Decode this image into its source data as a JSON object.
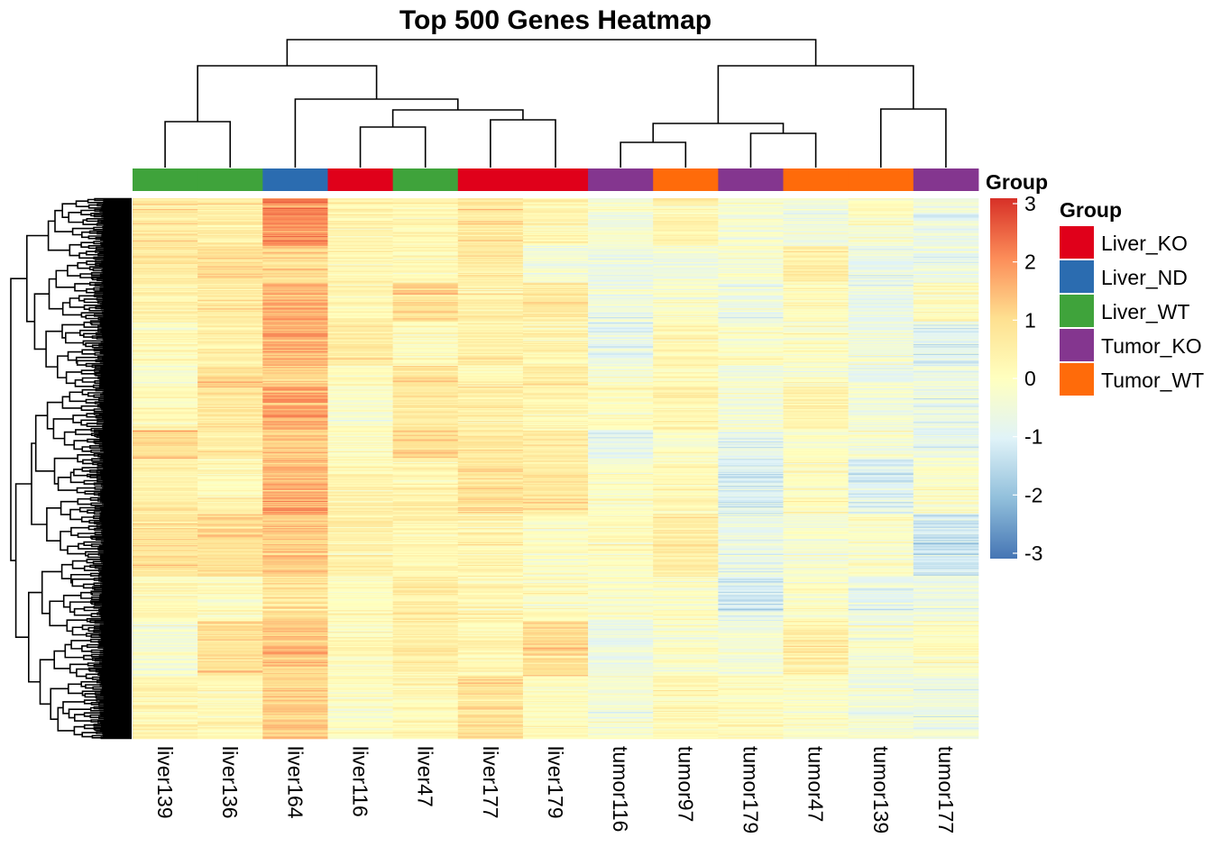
{
  "chart_data": {
    "type": "heatmap",
    "title": "Top 500 Genes Heatmap",
    "columns": [
      "liver139",
      "liver136",
      "liver164",
      "liver116",
      "liver47",
      "liver177",
      "liver179",
      "tumor116",
      "tumor97",
      "tumor179",
      "tumor47",
      "tumor139",
      "tumor177"
    ],
    "column_groups": [
      "Liver_WT",
      "Liver_WT",
      "Liver_ND",
      "Liver_KO",
      "Liver_WT",
      "Liver_KO",
      "Liver_KO",
      "Tumor_KO",
      "Tumor_WT",
      "Tumor_KO",
      "Tumor_WT",
      "Tumor_WT",
      "Tumor_KO"
    ],
    "annotation_label": "Group",
    "group_legend": {
      "title": "Group",
      "items": [
        {
          "label": "Liver_KO",
          "color": "#e0001a"
        },
        {
          "label": "Liver_ND",
          "color": "#2b6cb0"
        },
        {
          "label": "Liver_WT",
          "color": "#3fa33b"
        },
        {
          "label": "Tumor_KO",
          "color": "#84368f"
        },
        {
          "label": "Tumor_WT",
          "color": "#ff6b0a"
        }
      ]
    },
    "color_scale": {
      "ticks": [
        "3",
        "2",
        "1",
        "0",
        "-1",
        "-2",
        "-3"
      ],
      "range": [
        -3,
        3
      ],
      "colors": [
        "#4575b4",
        "#91bfdb",
        "#e0f3f8",
        "#ffffbf",
        "#fee090",
        "#fc8d59",
        "#d73027"
      ]
    },
    "rows": 500,
    "column_profile_mean": [
      0.35,
      0.55,
      1.4,
      0.1,
      0.5,
      0.5,
      0.35,
      -0.25,
      -0.1,
      -0.5,
      0.05,
      -0.35,
      -0.6
    ],
    "column_dendrogram": {
      "merges": [
        [
          1,
          2,
          "x"
        ],
        [
          6,
          7,
          "x"
        ],
        [
          5,
          0,
          "y"
        ],
        [
          4,
          8,
          "y"
        ],
        [
          3,
          10,
          "y"
        ],
        [
          9,
          11,
          "y"
        ],
        [
          2,
          -12,
          "x"
        ],
        [
          -1,
          -5,
          "x"
        ],
        [
          -4,
          -6,
          "x"
        ],
        [
          -3,
          -7,
          "y"
        ],
        [
          13,
          -9,
          "x"
        ],
        [
          -2,
          -10,
          "y"
        ]
      ],
      "note": ""
    }
  }
}
